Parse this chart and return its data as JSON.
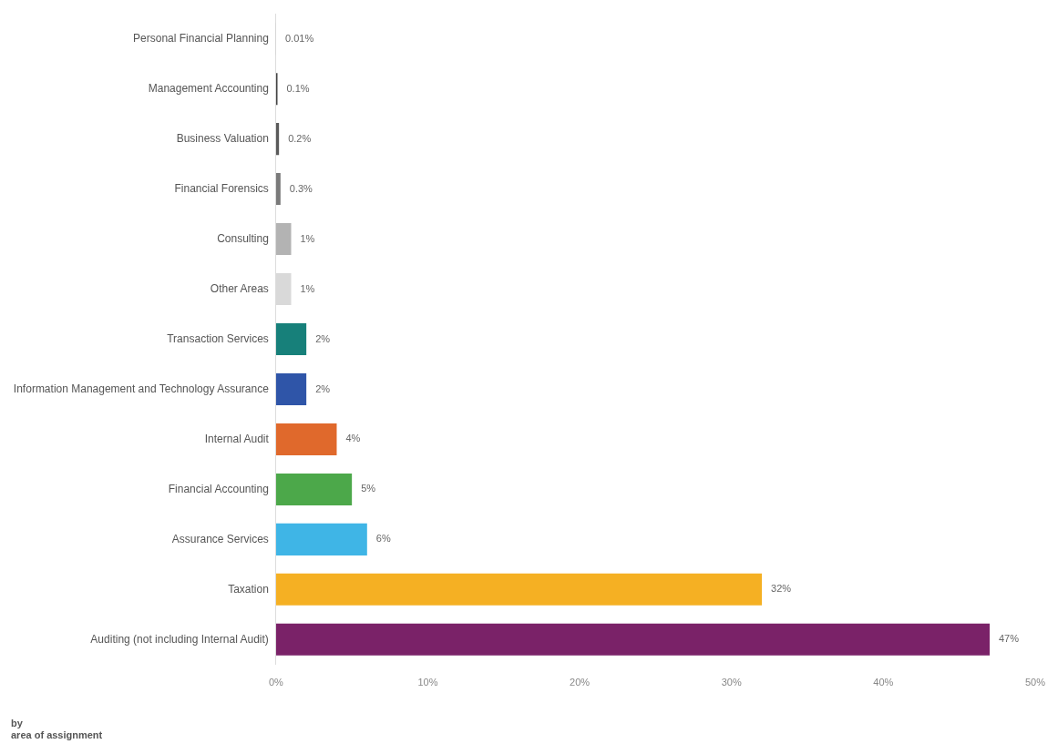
{
  "chart_data": {
    "type": "bar",
    "orientation": "horizontal",
    "categories": [
      "Personal Financial Planning",
      "Management Accounting",
      "Business Valuation",
      "Financial Forensics",
      "Consulting",
      "Other Areas",
      "Transaction Services",
      "Information Management and Technology Assurance",
      "Internal Audit",
      "Financial Accounting",
      "Assurance Services",
      "Taxation",
      "Auditing (not including Internal Audit)"
    ],
    "values": [
      0.01,
      0.1,
      0.2,
      0.3,
      1,
      1,
      2,
      2,
      4,
      5,
      6,
      32,
      47
    ],
    "colors": [
      "#2b2b2b",
      "#444444",
      "#5a5a5a",
      "#7a7a7a",
      "#b3b3b3",
      "#d9d9d9",
      "#17807a",
      "#2f55a8",
      "#e0692c",
      "#4ca84a",
      "#3fb5e6",
      "#f5b023",
      "#7a2268"
    ],
    "value_labels": [
      "0.01%",
      "0.1%",
      "0.2%",
      "0.3%",
      "1%",
      "1%",
      "2%",
      "2%",
      "4%",
      "5%",
      "6%",
      "32%",
      "47%"
    ],
    "xlim": [
      0,
      50
    ],
    "xticks": [
      {
        "value": 0,
        "label": "0%"
      },
      {
        "value": 10,
        "label": "10%"
      },
      {
        "value": 20,
        "label": "20%"
      },
      {
        "value": 30,
        "label": "30%"
      },
      {
        "value": 40,
        "label": "40%"
      },
      {
        "value": 50,
        "label": "50%"
      }
    ],
    "grid": false,
    "legend": false,
    "annotations": [
      "by",
      "area of assignment"
    ]
  }
}
